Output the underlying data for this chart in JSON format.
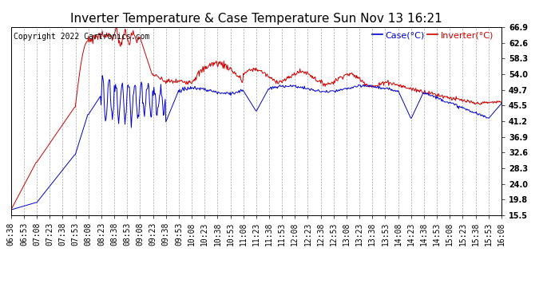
{
  "title": "Inverter Temperature & Case Temperature Sun Nov 13 16:21",
  "copyright": "Copyright 2022 Cartronics.com",
  "legend_case": "Case(°C)",
  "legend_inverter": "Inverter(°C)",
  "ylabel_right_ticks": [
    15.5,
    19.8,
    24.0,
    28.3,
    32.6,
    36.9,
    41.2,
    45.5,
    49.7,
    54.0,
    58.3,
    62.6,
    66.9
  ],
  "ymin": 15.5,
  "ymax": 66.9,
  "background_color": "#ffffff",
  "grid_color": "#aaaaaa",
  "inverter_color": "#cc0000",
  "case_color": "#0000cc",
  "title_fontsize": 11,
  "copyright_fontsize": 7,
  "legend_fontsize": 8,
  "tick_fontsize": 7,
  "x_tick_labels": [
    "06:38",
    "06:53",
    "07:08",
    "07:23",
    "07:38",
    "07:53",
    "08:08",
    "08:23",
    "08:38",
    "08:53",
    "09:08",
    "09:23",
    "09:38",
    "09:53",
    "10:08",
    "10:23",
    "10:38",
    "10:53",
    "11:08",
    "11:23",
    "11:38",
    "11:53",
    "12:08",
    "12:23",
    "12:38",
    "12:53",
    "13:08",
    "13:23",
    "13:38",
    "13:53",
    "14:08",
    "14:23",
    "14:38",
    "14:53",
    "15:08",
    "15:23",
    "15:38",
    "15:53",
    "16:08"
  ]
}
